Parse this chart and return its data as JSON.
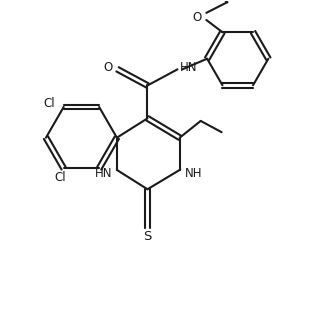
{
  "bg_color": "#ffffff",
  "line_color": "#1a1a1a",
  "line_width": 1.5,
  "font_size": 8.5,
  "fig_width": 3.24,
  "fig_height": 3.35,
  "dpi": 100,
  "xlim": [
    0,
    10
  ],
  "ylim": [
    0,
    10.35
  ]
}
